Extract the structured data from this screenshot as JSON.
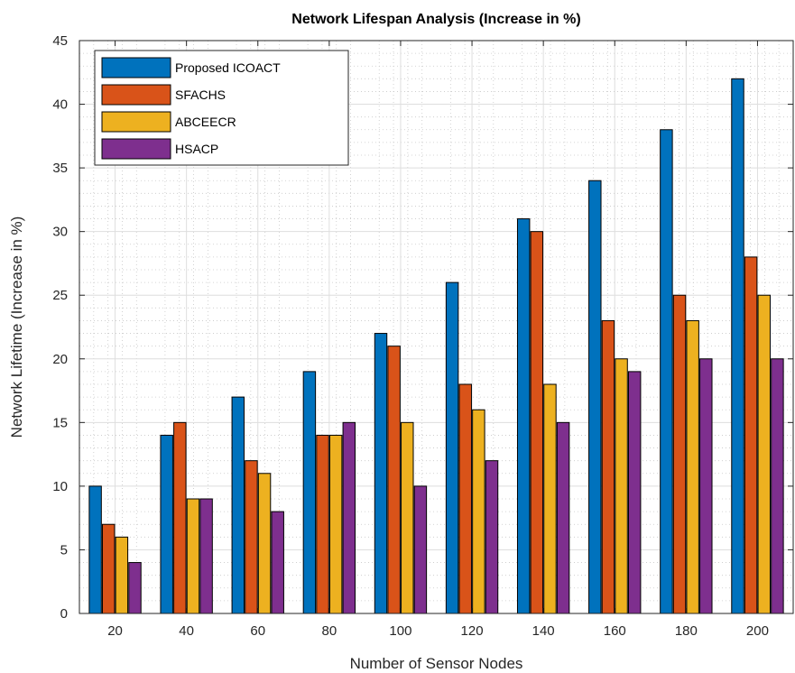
{
  "chart_data": {
    "type": "bar",
    "title": "Network Lifespan Analysis (Increase in %)",
    "xlabel": "Number of Sensor Nodes",
    "ylabel": "Network Lifetime (Increase in %)",
    "categories": [
      "20",
      "40",
      "60",
      "80",
      "100",
      "120",
      "140",
      "160",
      "180",
      "200"
    ],
    "ylim": [
      0,
      45
    ],
    "yticks": [
      0,
      5,
      10,
      15,
      20,
      25,
      30,
      35,
      40,
      45
    ],
    "grid": "on (major solid, minor dotted)",
    "legend_position": "top-left",
    "series": [
      {
        "name": "Proposed ICOACT",
        "color": "#0072BD",
        "values": [
          10,
          14,
          17,
          19,
          22,
          26,
          31,
          34,
          38,
          42
        ]
      },
      {
        "name": "SFACHS",
        "color": "#D95319",
        "values": [
          7,
          15,
          12,
          14,
          21,
          18,
          30,
          23,
          25,
          28
        ]
      },
      {
        "name": "ABCEECR",
        "color": "#EDB120",
        "values": [
          6,
          9,
          11,
          14,
          15,
          16,
          18,
          20,
          23,
          25
        ]
      },
      {
        "name": "HSACP",
        "color": "#7E2F8E",
        "values": [
          4,
          9,
          8,
          15,
          10,
          12,
          15,
          19,
          20,
          20
        ]
      }
    ]
  }
}
